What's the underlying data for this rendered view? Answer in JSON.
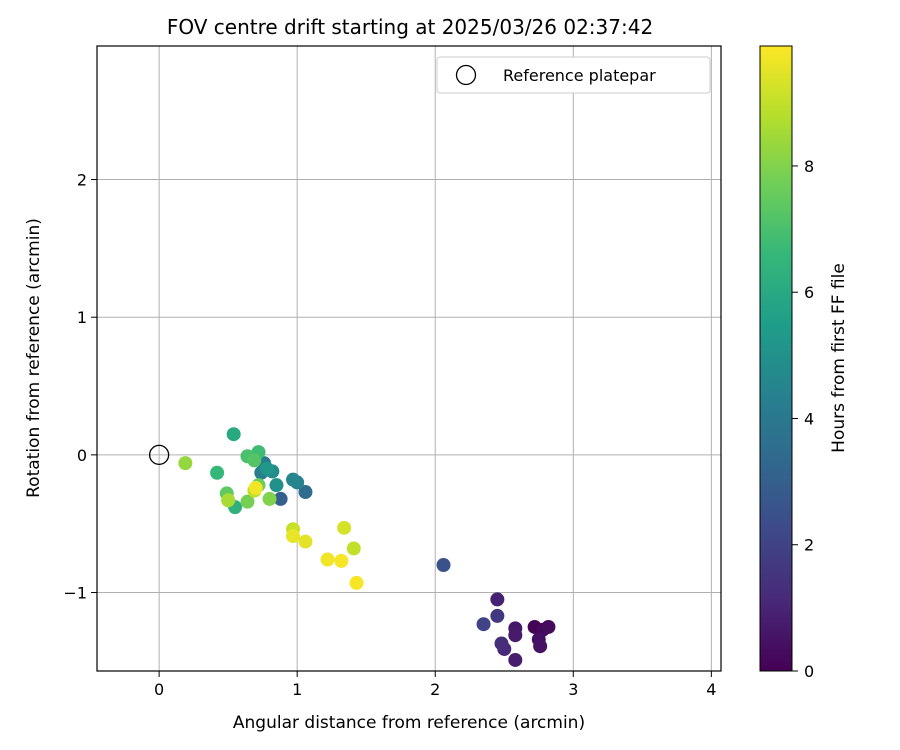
{
  "chart_data": {
    "type": "scatter",
    "title": "FOV centre drift starting at 2025/03/26 02:37:42",
    "xlabel": "Angular distance from reference (arcmin)",
    "ylabel": "Rotation from reference (arcmin)",
    "xlim": [
      -0.45,
      4.07
    ],
    "ylim": [
      -1.57,
      2.97
    ],
    "xticks": [
      0,
      1,
      2,
      3,
      4
    ],
    "yticks": [
      -1,
      0,
      1,
      2
    ],
    "ytick_labels": [
      "−1",
      "0",
      "1",
      "2"
    ],
    "grid": true,
    "legend": {
      "position": "top-right",
      "entries": [
        "Reference platepar"
      ]
    },
    "colorbar": {
      "label": "Hours from first FF file",
      "colormap": "viridis",
      "range": [
        0,
        9.9
      ],
      "ticks": [
        0,
        2,
        4,
        6,
        8
      ]
    },
    "reference_point": {
      "x": 0,
      "y": 0,
      "label": "Reference platepar"
    },
    "points": [
      {
        "x": 2.72,
        "y": -1.25,
        "hours": 0.1
      },
      {
        "x": 2.78,
        "y": -1.27,
        "hours": 0.2
      },
      {
        "x": 2.82,
        "y": -1.25,
        "hours": 0.3
      },
      {
        "x": 2.75,
        "y": -1.34,
        "hours": 0.4
      },
      {
        "x": 2.76,
        "y": -1.39,
        "hours": 0.5
      },
      {
        "x": 2.58,
        "y": -1.26,
        "hours": 0.6
      },
      {
        "x": 2.58,
        "y": -1.31,
        "hours": 0.7
      },
      {
        "x": 2.58,
        "y": -1.49,
        "hours": 0.8
      },
      {
        "x": 2.45,
        "y": -1.05,
        "hours": 0.9
      },
      {
        "x": 2.5,
        "y": -1.41,
        "hours": 1.1
      },
      {
        "x": 2.48,
        "y": -1.37,
        "hours": 1.3
      },
      {
        "x": 2.45,
        "y": -1.17,
        "hours": 1.6
      },
      {
        "x": 2.35,
        "y": -1.23,
        "hours": 2.0
      },
      {
        "x": 2.06,
        "y": -0.8,
        "hours": 2.5
      },
      {
        "x": 0.88,
        "y": -0.32,
        "hours": 3.0
      },
      {
        "x": 1.06,
        "y": -0.27,
        "hours": 3.5
      },
      {
        "x": 0.76,
        "y": -0.06,
        "hours": 4.0
      },
      {
        "x": 0.74,
        "y": -0.13,
        "hours": 4.2
      },
      {
        "x": 1.0,
        "y": -0.2,
        "hours": 4.4
      },
      {
        "x": 0.97,
        "y": -0.18,
        "hours": 4.6
      },
      {
        "x": 0.82,
        "y": -0.12,
        "hours": 4.8
      },
      {
        "x": 0.85,
        "y": -0.22,
        "hours": 5.0
      },
      {
        "x": 0.78,
        "y": -0.1,
        "hours": 5.2
      },
      {
        "x": 0.54,
        "y": 0.15,
        "hours": 6.0
      },
      {
        "x": 0.55,
        "y": -0.38,
        "hours": 6.3
      },
      {
        "x": 0.42,
        "y": -0.13,
        "hours": 6.6
      },
      {
        "x": 0.72,
        "y": 0.02,
        "hours": 6.8
      },
      {
        "x": 0.64,
        "y": -0.01,
        "hours": 7.0
      },
      {
        "x": 0.69,
        "y": -0.04,
        "hours": 7.2
      },
      {
        "x": 0.49,
        "y": -0.28,
        "hours": 7.4
      },
      {
        "x": 0.72,
        "y": -0.22,
        "hours": 7.6
      },
      {
        "x": 0.64,
        "y": -0.34,
        "hours": 7.8
      },
      {
        "x": 0.8,
        "y": -0.32,
        "hours": 8.0
      },
      {
        "x": 0.19,
        "y": -0.06,
        "hours": 8.3
      },
      {
        "x": 0.5,
        "y": -0.33,
        "hours": 8.6
      },
      {
        "x": 0.69,
        "y": -0.26,
        "hours": 8.9
      },
      {
        "x": 0.97,
        "y": -0.54,
        "hours": 9.1
      },
      {
        "x": 1.41,
        "y": -0.68,
        "hours": 9.0
      },
      {
        "x": 1.34,
        "y": -0.53,
        "hours": 9.3
      },
      {
        "x": 1.06,
        "y": -0.63,
        "hours": 9.5
      },
      {
        "x": 0.97,
        "y": -0.59,
        "hours": 9.6
      },
      {
        "x": 0.7,
        "y": -0.24,
        "hours": 9.7
      },
      {
        "x": 1.22,
        "y": -0.76,
        "hours": 9.7
      },
      {
        "x": 1.32,
        "y": -0.77,
        "hours": 9.8
      },
      {
        "x": 1.43,
        "y": -0.93,
        "hours": 9.8
      }
    ]
  }
}
